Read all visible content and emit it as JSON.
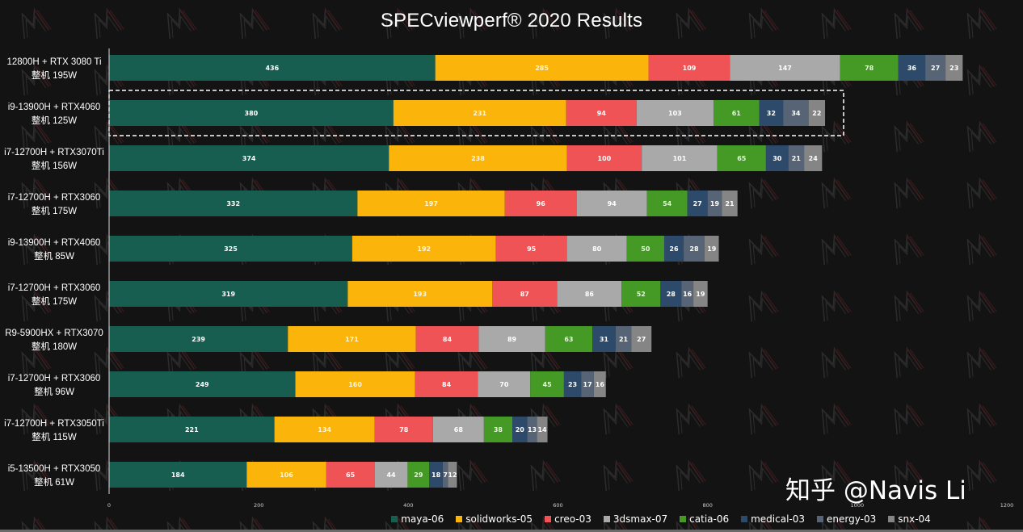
{
  "chart_data": {
    "type": "bar",
    "orientation": "horizontal",
    "stacked": true,
    "title": "SPECviewperf® 2020 Results",
    "xlabel": "",
    "ylabel": "",
    "xlim": [
      0,
      1200
    ],
    "xticks": [
      0,
      200,
      400,
      600,
      800,
      1000,
      1200
    ],
    "grid": false,
    "legend_position": "bottom",
    "highlighted_category_index": 1,
    "categories": [
      {
        "line1": "12800H + RTX 3080 Ti",
        "line2": "整机 195W"
      },
      {
        "line1": "i9-13900H +  RTX4060",
        "line2": "整机 125W"
      },
      {
        "line1": "i7-12700H + RTX3070Ti",
        "line2": "整机 156W"
      },
      {
        "line1": "i7-12700H + RTX3060",
        "line2": "整机 175W"
      },
      {
        "line1": "i9-13900H +  RTX4060",
        "line2": "整机 85W"
      },
      {
        "line1": "i7-12700H + RTX3060",
        "line2": "整机 175W"
      },
      {
        "line1": "R9-5900HX + RTX3070",
        "line2": "整机 180W"
      },
      {
        "line1": "i7-12700H + RTX3060",
        "line2": "整机 96W"
      },
      {
        "line1": "i7-12700H + RTX3050Ti",
        "line2": "整机 115W"
      },
      {
        "line1": "i5-13500H + RTX3050",
        "line2": "整机 61W"
      }
    ],
    "series": [
      {
        "name": "maya-06",
        "color": "#175e50",
        "label_color": "#ffffff",
        "values": [
          436,
          380,
          374,
          332,
          325,
          319,
          239,
          249,
          221,
          184
        ]
      },
      {
        "name": "solidworks-05",
        "color": "#fbb40a",
        "label_color": "#fff6d6",
        "values": [
          285,
          231,
          238,
          197,
          192,
          193,
          171,
          160,
          134,
          106
        ]
      },
      {
        "name": "creo-03",
        "color": "#f05356",
        "label_color": "#ffffff",
        "values": [
          109,
          94,
          100,
          96,
          95,
          87,
          84,
          84,
          78,
          65
        ]
      },
      {
        "name": "3dsmax-07",
        "color": "#a9a9a9",
        "label_color": "#ffffff",
        "values": [
          147,
          103,
          101,
          94,
          80,
          86,
          89,
          70,
          68,
          44
        ]
      },
      {
        "name": "catia-06",
        "color": "#459a26",
        "label_color": "#e6f5dc",
        "values": [
          78,
          61,
          65,
          54,
          50,
          52,
          63,
          45,
          38,
          29
        ]
      },
      {
        "name": "medical-03",
        "color": "#2e4a6a",
        "label_color": "#ffffff",
        "values": [
          36,
          32,
          30,
          27,
          26,
          28,
          31,
          23,
          20,
          18
        ]
      },
      {
        "name": "energy-03",
        "color": "#566475",
        "label_color": "#ffffff",
        "values": [
          27,
          34,
          21,
          19,
          28,
          16,
          21,
          17,
          13,
          7
        ]
      },
      {
        "name": "snx-04",
        "color": "#858585",
        "label_color": "#ffffff",
        "values": [
          23,
          22,
          24,
          21,
          19,
          19,
          27,
          16,
          14,
          12
        ]
      }
    ]
  },
  "credit": "知乎 @Navis Li"
}
